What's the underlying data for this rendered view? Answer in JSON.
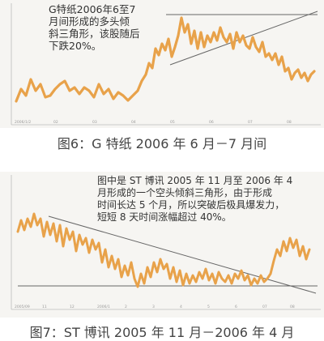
{
  "figure1": {
    "note": "G特纸2006年6至7\n月间形成的多头倾\n斜三角形，该股随后\n下跌20%。",
    "caption": "图6：G 特纸 2006 年 6 月－7 月间",
    "y_ticks": [
      "",
      "",
      "",
      ""
    ],
    "x_ticks": [
      "2006/1/2",
      "02",
      "03",
      "04",
      "05",
      "06",
      "07",
      "08"
    ]
  },
  "figure2": {
    "note": "图中是 ST 博讯 2005 年 11 月至 2006 年 4\n月形成的一个空头倾斜三角形，由于形成\n时间长达 5 个月，所以突破后极具爆发力，\n短短 8 天时间涨幅超过 40%。",
    "caption": "图7：ST 博讯 2005 年 11 月－2006 年 4 月",
    "y_ticks": [
      "",
      "",
      "",
      ""
    ],
    "x_ticks": [
      "2005/09",
      "11",
      "12",
      "2006/1",
      "2",
      "3",
      "4",
      "5",
      "6",
      "07",
      "08"
    ]
  },
  "colors": {
    "price_line": "#e8a24a",
    "trend_line": "#666666",
    "background": "#f6f5f2"
  }
}
